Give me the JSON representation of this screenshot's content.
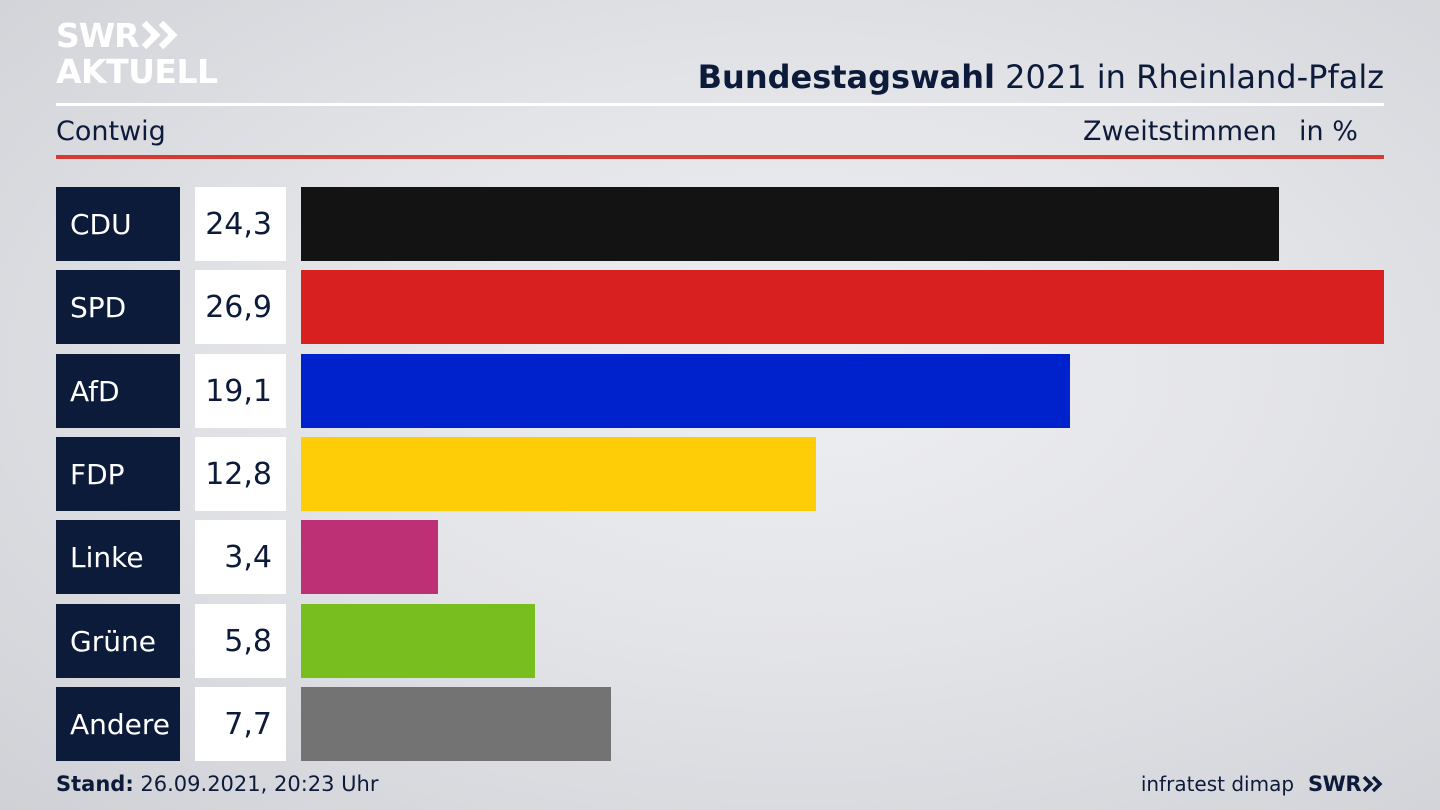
{
  "logo": {
    "line1": "SWR",
    "line2": "AKTUELL"
  },
  "header": {
    "title_bold": "Bundestagswahl",
    "title_rest": " 2021 in Rheinland-Pfalz",
    "subtitle": "Contwig",
    "vote_type": "Zweitstimmen",
    "unit": "in %"
  },
  "chart_data": {
    "type": "bar",
    "orientation": "horizontal",
    "title": "Bundestagswahl 2021 in Rheinland-Pfalz",
    "subtitle": "Contwig",
    "categories": [
      "CDU",
      "SPD",
      "AfD",
      "FDP",
      "Linke",
      "Grüne",
      "Andere"
    ],
    "values": [
      24.3,
      26.9,
      19.1,
      12.8,
      3.4,
      5.8,
      7.7
    ],
    "value_labels": [
      "24,3",
      "26,9",
      "19,1",
      "12,8",
      "3,4",
      "5,8",
      "7,7"
    ],
    "colors": [
      "#131313",
      "#d82020",
      "#0022cc",
      "#ffcc08",
      "#be3075",
      "#78be1e",
      "#737373"
    ],
    "xlabel": "Zweitstimmen",
    "ylabel": "",
    "unit": "in %",
    "xlim": [
      0,
      26.9
    ],
    "grid": false
  },
  "footer": {
    "stand_label": "Stand:",
    "stand_value": " 26.09.2021, 20:23 Uhr",
    "source": "infratest dimap",
    "brand": "SWR"
  },
  "colors": {
    "navy": "#0d1b3a",
    "accent_red": "#d43b33",
    "white": "#ffffff"
  }
}
